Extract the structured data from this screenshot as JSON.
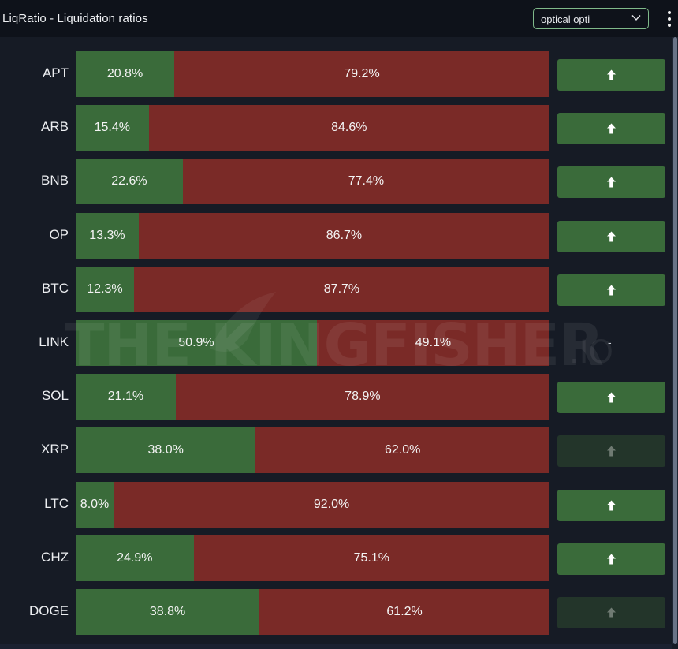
{
  "header": {
    "title": "LiqRatio - Liquidation ratios",
    "select_value": "optical opti"
  },
  "watermark": {
    "text": "THE KINGFISHER",
    "suffix": ".IO"
  },
  "colors": {
    "long": "#3a6b3a",
    "short": "#7a2a27",
    "button_active": "#3a6b3a",
    "button_dim": "#23352a"
  },
  "rows": [
    {
      "ticker": "APT",
      "long": 20.8,
      "short": 79.2,
      "long_label": "20.8%",
      "short_label": "79.2%",
      "signal": "up"
    },
    {
      "ticker": "ARB",
      "long": 15.4,
      "short": 84.6,
      "long_label": "15.4%",
      "short_label": "84.6%",
      "signal": "up"
    },
    {
      "ticker": "BNB",
      "long": 22.6,
      "short": 77.4,
      "long_label": "22.6%",
      "short_label": "77.4%",
      "signal": "up"
    },
    {
      "ticker": "OP",
      "long": 13.3,
      "short": 86.7,
      "long_label": "13.3%",
      "short_label": "86.7%",
      "signal": "up"
    },
    {
      "ticker": "BTC",
      "long": 12.3,
      "short": 87.7,
      "long_label": "12.3%",
      "short_label": "87.7%",
      "signal": "up"
    },
    {
      "ticker": "LINK",
      "long": 50.9,
      "short": 49.1,
      "long_label": "50.9%",
      "short_label": "49.1%",
      "signal": "none",
      "signal_text": "-"
    },
    {
      "ticker": "SOL",
      "long": 21.1,
      "short": 78.9,
      "long_label": "21.1%",
      "short_label": "78.9%",
      "signal": "up"
    },
    {
      "ticker": "XRP",
      "long": 38.0,
      "short": 62.0,
      "long_label": "38.0%",
      "short_label": "62.0%",
      "signal": "dim"
    },
    {
      "ticker": "LTC",
      "long": 8.0,
      "short": 92.0,
      "long_label": "8.0%",
      "short_label": "92.0%",
      "signal": "up"
    },
    {
      "ticker": "CHZ",
      "long": 24.9,
      "short": 75.1,
      "long_label": "24.9%",
      "short_label": "75.1%",
      "signal": "up"
    },
    {
      "ticker": "DOGE",
      "long": 38.8,
      "short": 61.2,
      "long_label": "38.8%",
      "short_label": "61.2%",
      "signal": "dim"
    }
  ]
}
